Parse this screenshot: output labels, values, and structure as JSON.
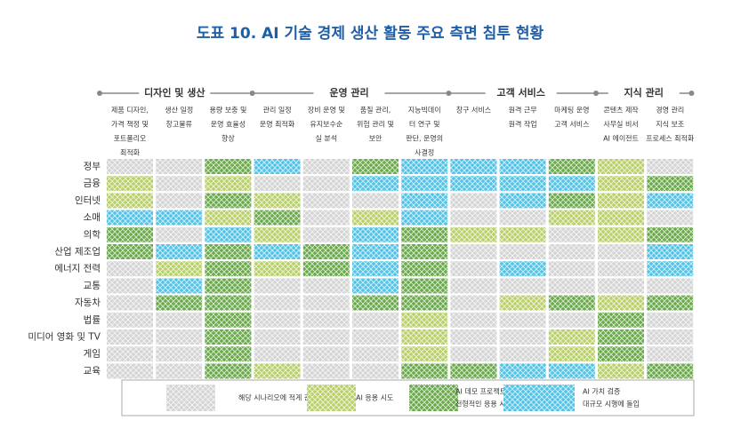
{
  "title": "도표 10. AI 기술 경제 생산 활동 주요 측면 침투 현황",
  "groups": [
    {
      "name": "디자인 및 생산",
      "columns": [
        {
          "lines": [
            "제품 디자인,",
            "가격 책정 및",
            "포트폴리오",
            "최적화"
          ]
        },
        {
          "lines": [
            "생산 일정",
            "창고물류"
          ]
        },
        {
          "lines": [
            "용량 보충 및",
            "운영 효율성",
            "향상"
          ]
        }
      ]
    },
    {
      "name": "운영 관리",
      "columns": [
        {
          "lines": [
            "관리 일정",
            "운영 최적화"
          ]
        },
        {
          "lines": [
            "장비 운영 및",
            "유지보수순",
            "실 분석"
          ]
        },
        {
          "lines": [
            "품질 관리,",
            "위험 관리 및",
            "보안"
          ]
        },
        {
          "lines": [
            "지능빅데이",
            "터 연구 및",
            "판단, 운영의",
            "사결정"
          ]
        }
      ]
    },
    {
      "name": "고객 서비스",
      "columns": [
        {
          "lines": [
            "창구 서비스"
          ]
        },
        {
          "lines": [
            "원격 근무",
            "원격 작업"
          ]
        },
        {
          "lines": [
            "마케팅 운영",
            "고객 서비스"
          ]
        }
      ]
    },
    {
      "name": "지식 관리",
      "columns": [
        {
          "lines": [
            "콘텐츠 제작",
            "사무실 비서",
            "AI 에이전트"
          ]
        },
        {
          "lines": [
            "경영 관리",
            "지식 보조",
            "프로세스 최적화"
          ]
        }
      ]
    }
  ],
  "rows": [
    "정부",
    "금융",
    "인터넷",
    "소매",
    "의학",
    "산업 제조업",
    "에너지 전력",
    "교통",
    "자동차",
    "법률",
    "미디어 영화 및 TV",
    "게임",
    "교육"
  ],
  "cells": [
    [
      0,
      0,
      2,
      3,
      0,
      2,
      3,
      3,
      3,
      2,
      1,
      0
    ],
    [
      1,
      0,
      1,
      0,
      0,
      3,
      3,
      3,
      3,
      3,
      1,
      2
    ],
    [
      1,
      0,
      2,
      1,
      0,
      0,
      3,
      0,
      3,
      2,
      1,
      3
    ],
    [
      3,
      3,
      1,
      2,
      0,
      1,
      3,
      0,
      0,
      1,
      1,
      0
    ],
    [
      2,
      0,
      3,
      1,
      0,
      3,
      2,
      1,
      1,
      0,
      1,
      2
    ],
    [
      2,
      3,
      2,
      3,
      2,
      3,
      2,
      0,
      0,
      0,
      0,
      3
    ],
    [
      0,
      1,
      2,
      1,
      2,
      3,
      2,
      0,
      3,
      0,
      0,
      3
    ],
    [
      0,
      3,
      2,
      0,
      0,
      3,
      2,
      0,
      0,
      0,
      0,
      0
    ],
    [
      0,
      2,
      2,
      0,
      0,
      2,
      2,
      0,
      1,
      2,
      1,
      2
    ],
    [
      0,
      0,
      2,
      0,
      0,
      0,
      1,
      0,
      0,
      0,
      2,
      0
    ],
    [
      0,
      0,
      2,
      0,
      0,
      0,
      1,
      0,
      0,
      1,
      2,
      0
    ],
    [
      0,
      0,
      2,
      0,
      0,
      0,
      1,
      0,
      0,
      1,
      2,
      0
    ],
    [
      0,
      0,
      2,
      1,
      0,
      0,
      2,
      2,
      3,
      3,
      1,
      2
    ]
  ],
  "legend": [
    {
      "lines": [
        "해당 시나리오에 적게 관여"
      ],
      "color": "#d4d4d4"
    },
    {
      "lines": [
        "AI 응용 시도"
      ],
      "color": "#b9d06a"
    },
    {
      "lines": [
        "AI 데모 프로젝트 증가",
        "전형적인 응용 시나리오 형성"
      ],
      "color": "#6aaa4c"
    },
    {
      "lines": [
        "AI 가치 검증",
        "대규모 시행에 돌입"
      ],
      "color": "#52c3e6"
    }
  ]
}
